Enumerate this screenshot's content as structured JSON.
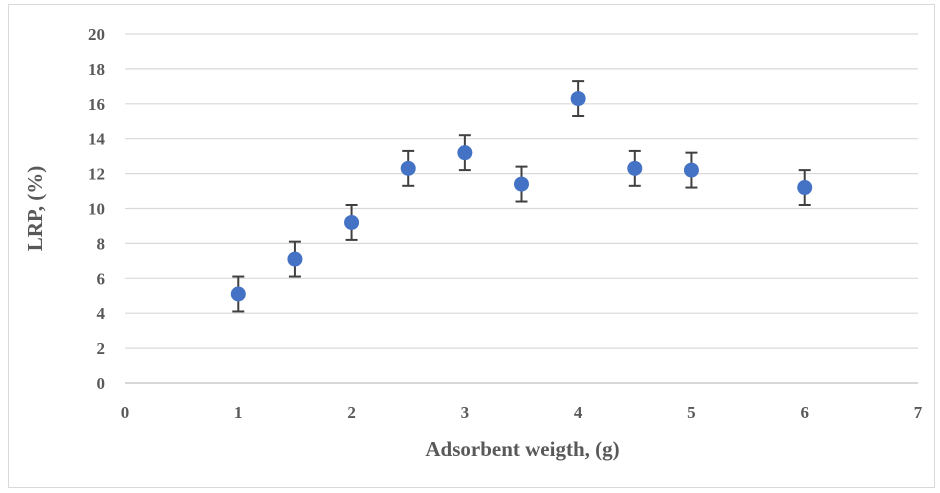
{
  "chart_data": {
    "type": "scatter",
    "title": "",
    "xlabel": "Adsorbent weigth, (g)",
    "ylabel": "LRP, (%)",
    "xlim": [
      0,
      7
    ],
    "ylim": [
      0,
      20
    ],
    "x_ticks": [
      "0",
      "1",
      "2",
      "3",
      "4",
      "5",
      "6",
      "7"
    ],
    "y_ticks": [
      "0",
      "2",
      "4",
      "6",
      "8",
      "10",
      "12",
      "14",
      "16",
      "18",
      "20"
    ],
    "grid": "horizontal",
    "legend": "none",
    "marker_color": "#4472c4",
    "error_bar_color": "#404040",
    "series": [
      {
        "x": [
          1,
          1.5,
          2,
          2.5,
          3,
          3.5,
          4,
          4.5,
          5,
          6
        ],
        "y": [
          5.1,
          7.1,
          9.2,
          12.3,
          13.2,
          11.4,
          16.3,
          12.3,
          12.2,
          11.2
        ],
        "error": [
          1,
          1,
          1,
          1,
          1,
          1,
          1,
          1,
          1,
          1
        ]
      }
    ]
  }
}
